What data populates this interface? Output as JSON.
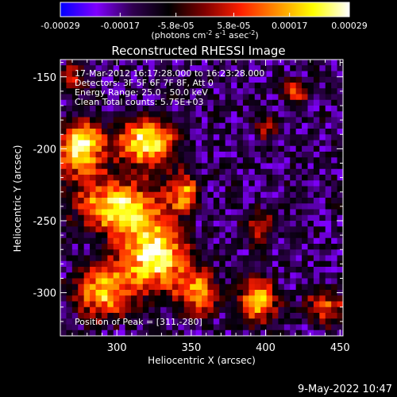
{
  "chart_data": {
    "type": "heatmap",
    "title": "Reconstructed RHESSI Image",
    "xlabel": "Heliocentric X (arcsec)",
    "ylabel": "Heliocentric Y (arcsec)",
    "xlim": [
      262,
      452
    ],
    "ylim": [
      -330,
      -138
    ],
    "x_ticks": [
      300,
      350,
      400,
      450
    ],
    "y_ticks": [
      -150,
      -200,
      -250,
      -300
    ],
    "colorbar": {
      "min": -0.00029,
      "max": 0.00029,
      "tick_labels": [
        "-0.00029",
        "-0.00017",
        "-5.8e-05",
        "5.8e-05",
        "0.00017",
        "0.00029"
      ],
      "tick_values": [
        -0.00029,
        -0.00017,
        -5.8e-05,
        5.8e-05,
        0.00017,
        0.00029
      ],
      "unit_label_main": "(photons cm",
      "unit_exp1": "-2",
      "unit_mid": " s",
      "unit_exp2": "-1",
      "unit_mid2": " asec",
      "unit_exp3": "-2",
      "unit_end": ")",
      "colors": [
        "#0000ff",
        "#8000ff",
        "#300050",
        "#000000",
        "#800000",
        "#ff2000",
        "#ff9000",
        "#ffff00",
        "#ffffff"
      ]
    },
    "annotations": [
      "17-Mar-2012 16:17:28.000 to 16:23:28.000",
      "Detectors: 3F 5F 6F 7F 8F, Att 0",
      "Energy Range: 25.0 - 50.0 keV",
      "Clean     Total counts: 5.75E+03"
    ],
    "peak_label": "Position of Peak = [311,-280]",
    "peak_position": [
      311,
      -280
    ],
    "grid_size": [
      48,
      48
    ],
    "hot_regions": [
      {
        "x": 275,
        "y": -200,
        "sx": 12,
        "sy": 14,
        "amp": 1.0
      },
      {
        "x": 320,
        "y": -195,
        "sx": 14,
        "sy": 12,
        "amp": 1.0
      },
      {
        "x": 300,
        "y": -240,
        "sx": 20,
        "sy": 14,
        "amp": 0.9
      },
      {
        "x": 325,
        "y": -275,
        "sx": 16,
        "sy": 18,
        "amp": 1.0
      },
      {
        "x": 290,
        "y": -300,
        "sx": 14,
        "sy": 14,
        "amp": 0.8
      },
      {
        "x": 345,
        "y": -230,
        "sx": 8,
        "sy": 10,
        "amp": 0.7
      },
      {
        "x": 355,
        "y": -300,
        "sx": 10,
        "sy": 12,
        "amp": 0.7
      },
      {
        "x": 395,
        "y": -305,
        "sx": 10,
        "sy": 12,
        "amp": 0.8
      },
      {
        "x": 395,
        "y": -255,
        "sx": 8,
        "sy": 10,
        "amp": 0.55
      },
      {
        "x": 440,
        "y": -310,
        "sx": 10,
        "sy": 10,
        "amp": 0.6
      },
      {
        "x": 420,
        "y": -160,
        "sx": 7,
        "sy": 7,
        "amp": 0.6
      },
      {
        "x": 270,
        "y": -150,
        "sx": 8,
        "sy": 8,
        "amp": 0.5
      },
      {
        "x": 400,
        "y": -185,
        "sx": 6,
        "sy": 8,
        "amp": 0.45
      }
    ]
  },
  "footer": {
    "timestamp": "9-May-2022 10:47"
  }
}
